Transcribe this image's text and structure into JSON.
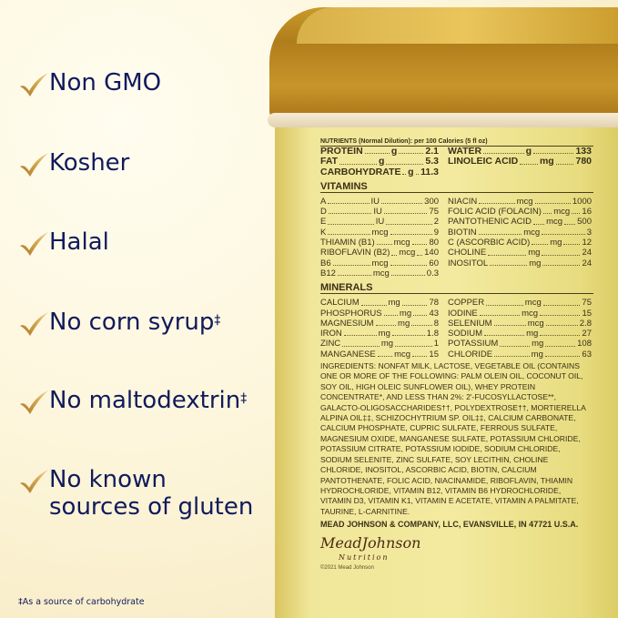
{
  "claims": [
    {
      "text": "Non GMO",
      "mark": ""
    },
    {
      "text": "Kosher",
      "mark": ""
    },
    {
      "text": "Halal",
      "mark": ""
    },
    {
      "text": "No corn syrup",
      "mark": "‡"
    },
    {
      "text": "No maltodextrin",
      "mark": "‡"
    },
    {
      "text": "No known sources of gluten",
      "mark": ""
    }
  ],
  "footnote": "‡As a source of carbohydrate",
  "check_icon": "gold-checkmark",
  "colors": {
    "claim_text": "#111a5c",
    "check": "#c8983a",
    "lid": "#b07d1c",
    "can_body": "#f1e79a"
  },
  "label": {
    "header": "NUTRIENTS (Normal Dilution): per 100 Calories (5 fl oz)",
    "macros": [
      {
        "l": "PROTEIN",
        "u": "g",
        "v": "2.1",
        "r": "WATER",
        "ru": "g",
        "rv": "133"
      },
      {
        "l": "FAT",
        "u": "g",
        "v": "5.3",
        "r": "LINOLEIC ACID",
        "ru": "mg",
        "rv": "780"
      },
      {
        "l": "CARBOHYDRATE",
        "u": "g",
        "v": "11.3",
        "r": "",
        "ru": "",
        "rv": ""
      }
    ],
    "vitamins_title": "VITAMINS",
    "vitamins": [
      {
        "l": "A",
        "u": "IU",
        "v": "300",
        "r": "NIACIN",
        "ru": "mcg",
        "rv": "1000"
      },
      {
        "l": "D",
        "u": "IU",
        "v": "75",
        "r": "FOLIC ACID (FOLACIN)",
        "ru": "mcg",
        "rv": "16"
      },
      {
        "l": "E",
        "u": "IU",
        "v": "2",
        "r": "PANTOTHENIC ACID",
        "ru": "mcg",
        "rv": "500"
      },
      {
        "l": "K",
        "u": "mcg",
        "v": "9",
        "r": "BIOTIN",
        "ru": "mcg",
        "rv": "3"
      },
      {
        "l": "THIAMIN (B1)",
        "u": "mcg",
        "v": "80",
        "r": "C (ASCORBIC ACID)",
        "ru": "mg",
        "rv": "12"
      },
      {
        "l": "RIBOFLAVIN (B2)",
        "u": "mcg",
        "v": "140",
        "r": "CHOLINE",
        "ru": "mg",
        "rv": "24"
      },
      {
        "l": "B6",
        "u": "mcg",
        "v": "60",
        "r": "INOSITOL",
        "ru": "mg",
        "rv": "24"
      },
      {
        "l": "B12",
        "u": "mcg",
        "v": "0.3",
        "r": "",
        "ru": "",
        "rv": ""
      }
    ],
    "minerals_title": "MINERALS",
    "minerals": [
      {
        "l": "CALCIUM",
        "u": "mg",
        "v": "78",
        "r": "COPPER",
        "ru": "mcg",
        "rv": "75"
      },
      {
        "l": "PHOSPHORUS",
        "u": "mg",
        "v": "43",
        "r": "IODINE",
        "ru": "mcg",
        "rv": "15"
      },
      {
        "l": "MAGNESIUM",
        "u": "mg",
        "v": "8",
        "r": "SELENIUM",
        "ru": "mcg",
        "rv": "2.8"
      },
      {
        "l": "IRON",
        "u": "mg",
        "v": "1.8",
        "r": "SODIUM",
        "ru": "mg",
        "rv": "27"
      },
      {
        "l": "ZINC",
        "u": "mg",
        "v": "1",
        "r": "POTASSIUM",
        "ru": "mg",
        "rv": "108"
      },
      {
        "l": "MANGANESE",
        "u": "mcg",
        "v": "15",
        "r": "CHLORIDE",
        "ru": "mg",
        "rv": "63"
      }
    ],
    "ingredients": "INGREDIENTS: NONFAT MILK, LACTOSE, VEGETABLE OIL (CONTAINS ONE OR MORE OF THE FOLLOWING: PALM OLEIN OIL, COCONUT OIL, SOY OIL, HIGH OLEIC SUNFLOWER OIL), WHEY PROTEIN CONCENTRATE*, AND LESS THAN 2%: 2'-FUCOSYLLACTOSE**, GALACTO-OLIGOSACCHARIDES††, POLYDEXTROSE††, MORTIERELLA ALPINA OIL‡‡, SCHIZOCHYTRIUM SP. OIL‡‡, CALCIUM CARBONATE, CALCIUM PHOSPHATE, CUPRIC SULFATE, FERROUS SULFATE, MAGNESIUM OXIDE, MANGANESE SULFATE, POTASSIUM CHLORIDE, POTASSIUM CITRATE, POTASSIUM IODIDE, SODIUM CHLORIDE, SODIUM SELENITE, ZINC SULFATE, SOY LECITHIN, CHOLINE CHLORIDE, INOSITOL, ASCORBIC ACID, BIOTIN, CALCIUM PANTOTHENATE, FOLIC ACID, NIACINAMIDE, RIBOFLAVIN, THIAMIN HYDROCHLORIDE, VITAMIN B12, VITAMIN B6 HYDROCHLORIDE, VITAMIN D3, VITAMIN K1, VITAMIN E ACETATE, VITAMIN A PALMITATE, TAURINE, L-CARNITINE.",
    "manufacturer": "MEAD JOHNSON & COMPANY, LLC, EVANSVILLE, IN 47721 U.S.A.",
    "logo": "MeadJohnson",
    "logo_sub": "Nutrition",
    "copyright": "©2021 Mead Johnson"
  }
}
